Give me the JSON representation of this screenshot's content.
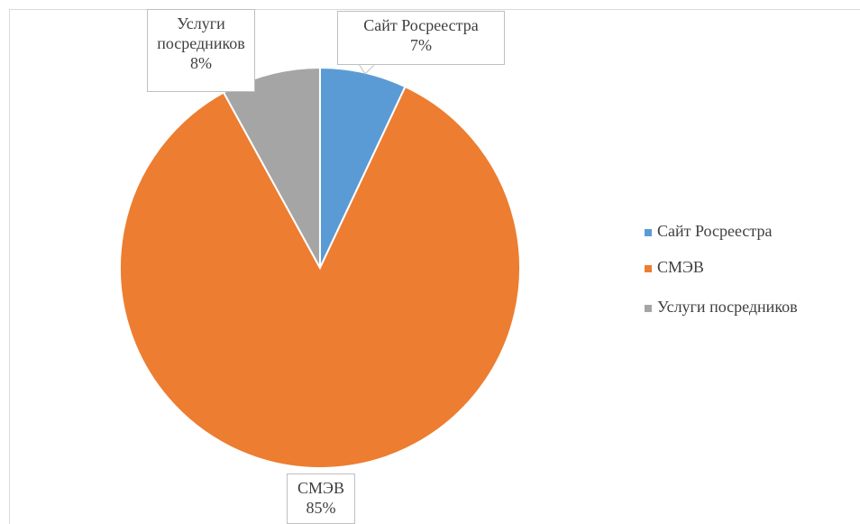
{
  "chart_data": {
    "type": "pie",
    "categories": [
      "Сайт Росреестра",
      "СМЭВ",
      "Услуги посредников"
    ],
    "values": [
      7,
      85,
      8
    ],
    "value_labels": [
      "7%",
      "85%",
      "8%"
    ],
    "colors": [
      "#5b9bd5",
      "#ed7d31",
      "#a5a5a5"
    ],
    "legend": "right"
  }
}
